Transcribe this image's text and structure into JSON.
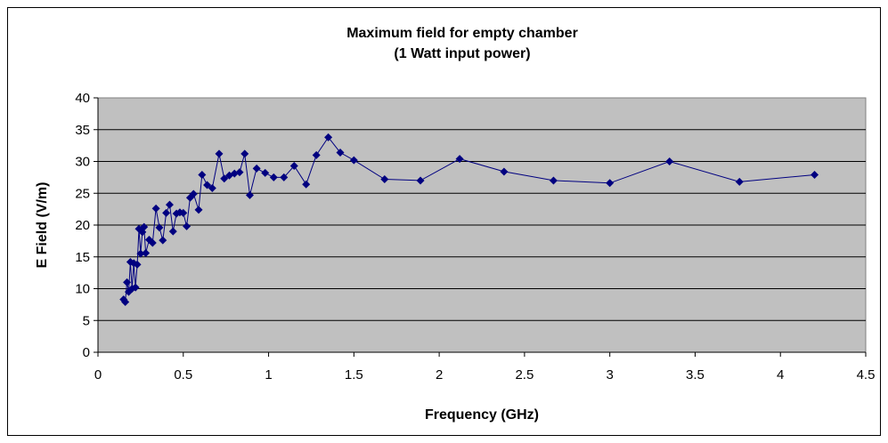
{
  "colors": {
    "plot_background": "#c0c0c0",
    "series": "#000080",
    "gridline": "#000000",
    "frame": "#000000"
  },
  "chart_data": {
    "type": "scatter",
    "title": "Maximum field for empty chamber",
    "subtitle": "(1 Watt input power)",
    "xlabel": "Frequency (GHz)",
    "ylabel": "E Field (V/m)",
    "xlim": [
      0,
      4.5
    ],
    "ylim": [
      0,
      40
    ],
    "xticks": [
      "0",
      "0.5",
      "1",
      "1.5",
      "2",
      "2.5",
      "3",
      "3.5",
      "4",
      "4.5"
    ],
    "yticks": [
      "0",
      "5",
      "10",
      "15",
      "20",
      "25",
      "30",
      "35",
      "40"
    ],
    "grid": "horizontal major gridlines",
    "legend": "none",
    "marker": "diamond",
    "connected": true,
    "series": [
      {
        "points": [
          [
            0.15,
            8.3
          ],
          [
            0.16,
            7.9
          ],
          [
            0.17,
            11.0
          ],
          [
            0.18,
            9.5
          ],
          [
            0.19,
            14.2
          ],
          [
            0.2,
            10.0
          ],
          [
            0.21,
            14.0
          ],
          [
            0.22,
            10.2
          ],
          [
            0.23,
            13.8
          ],
          [
            0.24,
            19.4
          ],
          [
            0.25,
            15.5
          ],
          [
            0.26,
            18.9
          ],
          [
            0.27,
            19.7
          ],
          [
            0.28,
            15.6
          ],
          [
            0.3,
            17.7
          ],
          [
            0.32,
            17.2
          ],
          [
            0.34,
            22.6
          ],
          [
            0.36,
            19.6
          ],
          [
            0.38,
            17.6
          ],
          [
            0.4,
            21.9
          ],
          [
            0.42,
            23.2
          ],
          [
            0.44,
            19.0
          ],
          [
            0.46,
            21.8
          ],
          [
            0.48,
            22.0
          ],
          [
            0.5,
            21.9
          ],
          [
            0.52,
            19.8
          ],
          [
            0.54,
            24.3
          ],
          [
            0.56,
            24.9
          ],
          [
            0.59,
            22.4
          ],
          [
            0.61,
            27.9
          ],
          [
            0.64,
            26.3
          ],
          [
            0.67,
            25.8
          ],
          [
            0.71,
            31.2
          ],
          [
            0.74,
            27.3
          ],
          [
            0.77,
            27.8
          ],
          [
            0.8,
            28.1
          ],
          [
            0.83,
            28.3
          ],
          [
            0.86,
            31.2
          ],
          [
            0.89,
            24.7
          ],
          [
            0.93,
            28.9
          ],
          [
            0.98,
            28.2
          ],
          [
            1.03,
            27.5
          ],
          [
            1.09,
            27.5
          ],
          [
            1.15,
            29.3
          ],
          [
            1.22,
            26.4
          ],
          [
            1.28,
            31.0
          ],
          [
            1.35,
            33.8
          ],
          [
            1.42,
            31.4
          ],
          [
            1.5,
            30.2
          ],
          [
            1.68,
            27.2
          ],
          [
            1.89,
            27.0
          ],
          [
            2.12,
            30.4
          ],
          [
            2.38,
            28.4
          ],
          [
            2.67,
            27.0
          ],
          [
            3.0,
            26.6
          ],
          [
            3.35,
            30.0
          ],
          [
            3.76,
            26.8
          ],
          [
            4.2,
            27.9
          ]
        ]
      }
    ]
  }
}
